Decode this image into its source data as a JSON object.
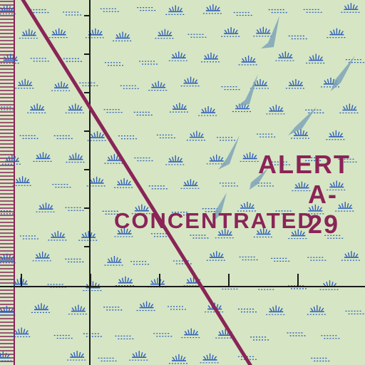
{
  "map": {
    "background": "#d6e6c4",
    "colors": {
      "marsh_symbol": "#2f5fb8",
      "water": "#7fa3b9",
      "airway_route": "#8a2457",
      "grid_line": "#1a1a1a",
      "alert_area_text": "#8a2457"
    },
    "alert_area": {
      "title": "ALERT",
      "designator": "A-29",
      "note": "CONCENTRATED"
    },
    "symbols": [
      "marsh-symbol",
      "water-body",
      "airway-route-line",
      "latitude-longitude-grid",
      "hachured-boundary"
    ]
  }
}
